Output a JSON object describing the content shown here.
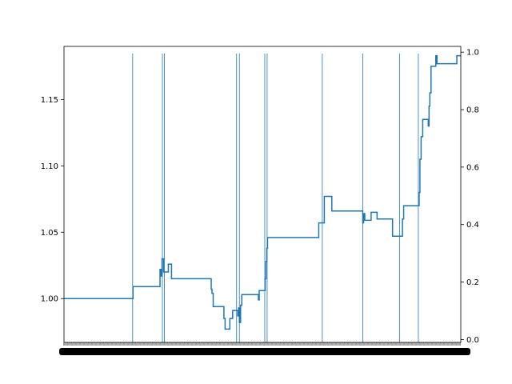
{
  "chart_data": {
    "type": "line",
    "title": "",
    "xlabel": "",
    "ylabel": "",
    "grid": false,
    "line_color": "#1f77b4",
    "vline_color": "#1f77b4",
    "x_tick_labels_overlapping": true,
    "x_range": [
      0,
      100
    ],
    "left_axis": {
      "ylim": [
        0.967,
        1.19
      ],
      "ticks": [
        1.0,
        1.05,
        1.1,
        1.15
      ],
      "tick_labels": [
        "1.00",
        "1.05",
        "1.10",
        "1.15"
      ]
    },
    "right_axis": {
      "ylim": [
        -0.01,
        1.02
      ],
      "ticks": [
        0.0,
        0.2,
        0.4,
        0.6,
        0.8,
        1.0
      ],
      "tick_labels": [
        "0.0",
        "0.2",
        "0.4",
        "0.6",
        "0.8",
        "1.0"
      ]
    },
    "vertical_lines_x": [
      17.3,
      24.8,
      25.3,
      43.5,
      44.2,
      50.6,
      51.2,
      65.1,
      75.3,
      84.6,
      89.3
    ],
    "vertical_line_top_right_axis": 0.995,
    "series": [
      {
        "step": true,
        "points": [
          [
            0,
            1.0
          ],
          [
            17.3,
            1.0
          ],
          [
            17.4,
            1.009
          ],
          [
            24.0,
            1.009
          ],
          [
            24.2,
            1.022
          ],
          [
            24.5,
            1.017
          ],
          [
            24.7,
            1.03
          ],
          [
            25.1,
            1.02
          ],
          [
            26.0,
            1.02
          ],
          [
            26.3,
            1.026
          ],
          [
            26.8,
            1.026
          ],
          [
            27.1,
            1.015
          ],
          [
            36.9,
            1.015
          ],
          [
            37.1,
            1.007
          ],
          [
            37.3,
            1.004
          ],
          [
            37.6,
            0.994
          ],
          [
            40.0,
            0.994
          ],
          [
            40.3,
            0.985
          ],
          [
            40.6,
            0.977
          ],
          [
            41.6,
            0.977
          ],
          [
            41.8,
            0.985
          ],
          [
            42.3,
            0.985
          ],
          [
            42.5,
            0.991
          ],
          [
            43.6,
            0.991
          ],
          [
            43.8,
            0.987
          ],
          [
            44.0,
            0.993
          ],
          [
            44.2,
            0.982
          ],
          [
            44.5,
            0.995
          ],
          [
            44.8,
            1.003
          ],
          [
            48.8,
            1.003
          ],
          [
            49.0,
            0.999
          ],
          [
            49.2,
            1.006
          ],
          [
            50.5,
            1.006
          ],
          [
            50.7,
            1.015
          ],
          [
            50.9,
            1.028
          ],
          [
            51.1,
            1.038
          ],
          [
            51.3,
            1.046
          ],
          [
            64.0,
            1.046
          ],
          [
            64.2,
            1.057
          ],
          [
            65.3,
            1.057
          ],
          [
            65.6,
            1.077
          ],
          [
            67.3,
            1.077
          ],
          [
            67.5,
            1.066
          ],
          [
            75.1,
            1.066
          ],
          [
            75.3,
            1.057
          ],
          [
            75.5,
            1.064
          ],
          [
            75.8,
            1.059
          ],
          [
            77.2,
            1.059
          ],
          [
            77.4,
            1.065
          ],
          [
            78.7,
            1.065
          ],
          [
            78.9,
            1.06
          ],
          [
            82.6,
            1.06
          ],
          [
            82.8,
            1.047
          ],
          [
            85.0,
            1.047
          ],
          [
            85.3,
            1.06
          ],
          [
            85.6,
            1.07
          ],
          [
            89.3,
            1.07
          ],
          [
            89.5,
            1.08
          ],
          [
            89.7,
            1.105
          ],
          [
            90.0,
            1.122
          ],
          [
            90.4,
            1.135
          ],
          [
            91.6,
            1.135
          ],
          [
            91.8,
            1.13
          ],
          [
            92.0,
            1.145
          ],
          [
            92.2,
            1.155
          ],
          [
            92.5,
            1.175
          ],
          [
            93.6,
            1.175
          ],
          [
            93.7,
            1.183
          ],
          [
            94.0,
            1.177
          ],
          [
            98.7,
            1.177
          ],
          [
            99.0,
            1.183
          ],
          [
            100,
            1.183
          ]
        ]
      }
    ]
  }
}
